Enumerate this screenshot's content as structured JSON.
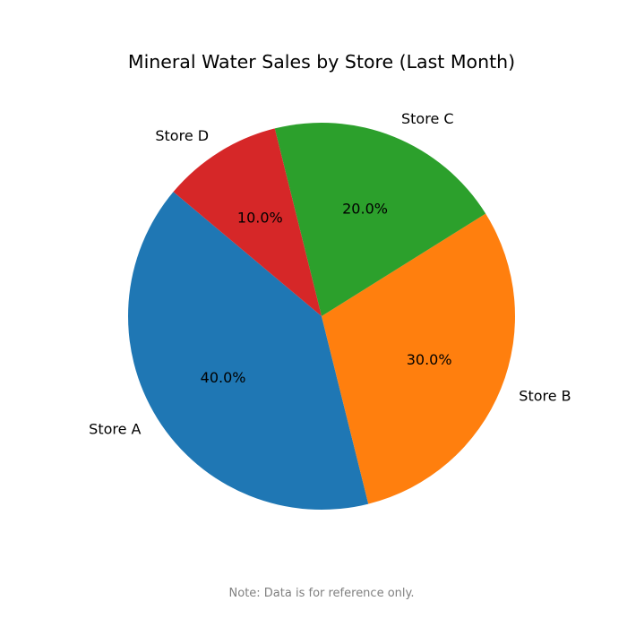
{
  "chart_data": {
    "type": "pie",
    "title": "Mineral Water Sales by Store (Last Month)",
    "categories": [
      "Store A",
      "Store B",
      "Store C",
      "Store D"
    ],
    "values": [
      40,
      30,
      20,
      10
    ],
    "value_labels": [
      "40.0%",
      "30.0%",
      "20.0%",
      "10.0%"
    ],
    "colors": [
      "#1f77b4",
      "#ff7f0e",
      "#2ca02c",
      "#d62728"
    ],
    "start_angle_deg": 140,
    "direction": "counterclockwise",
    "legend": "none"
  },
  "footnote": "Note: Data is for reference only."
}
